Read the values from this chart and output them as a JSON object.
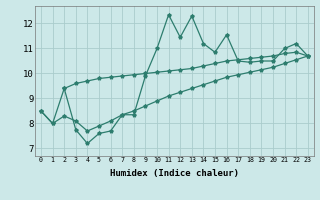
{
  "xlabel": "Humidex (Indice chaleur)",
  "bg_color": "#cce8e8",
  "grid_color": "#aacccc",
  "line_color": "#2d7d6e",
  "xlim": [
    -0.5,
    23.5
  ],
  "ylim": [
    6.7,
    12.7
  ],
  "xticks": [
    0,
    1,
    2,
    3,
    4,
    5,
    6,
    7,
    8,
    9,
    10,
    11,
    12,
    13,
    14,
    15,
    16,
    17,
    18,
    19,
    20,
    21,
    22,
    23
  ],
  "yticks": [
    7,
    8,
    9,
    10,
    11,
    12
  ],
  "line_spiky_x": [
    0,
    1,
    2,
    3,
    4,
    5,
    6,
    7,
    8,
    9,
    10,
    11,
    12,
    13,
    14,
    15,
    16,
    17,
    18,
    19,
    20,
    21,
    22,
    23
  ],
  "line_spiky_y": [
    8.5,
    8.0,
    9.4,
    7.75,
    7.2,
    7.6,
    7.7,
    8.35,
    8.35,
    9.9,
    11.0,
    12.35,
    11.45,
    12.3,
    11.2,
    10.85,
    11.55,
    10.5,
    10.45,
    10.5,
    10.5,
    11.0,
    11.2,
    10.7
  ],
  "line_mid_x": [
    2,
    3,
    4,
    5,
    6,
    7,
    8,
    9,
    10,
    11,
    12,
    13,
    14,
    15,
    16,
    17,
    18,
    19,
    20,
    21,
    22,
    23
  ],
  "line_mid_y": [
    9.4,
    9.6,
    9.7,
    9.8,
    9.85,
    9.9,
    9.95,
    10.0,
    10.05,
    10.1,
    10.15,
    10.2,
    10.3,
    10.4,
    10.5,
    10.55,
    10.6,
    10.65,
    10.7,
    10.8,
    10.85,
    10.7
  ],
  "line_low_x": [
    0,
    1,
    2,
    3,
    4,
    5,
    6,
    7,
    8,
    9,
    10,
    11,
    12,
    13,
    14,
    15,
    16,
    17,
    18,
    19,
    20,
    21,
    22,
    23
  ],
  "line_low_y": [
    8.5,
    8.0,
    8.3,
    8.1,
    7.7,
    7.9,
    8.1,
    8.35,
    8.5,
    8.7,
    8.9,
    9.1,
    9.25,
    9.4,
    9.55,
    9.7,
    9.85,
    9.95,
    10.05,
    10.15,
    10.25,
    10.4,
    10.55,
    10.7
  ]
}
